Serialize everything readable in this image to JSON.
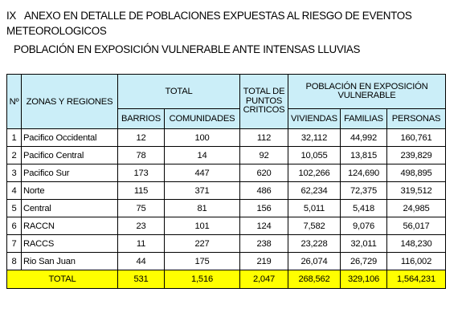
{
  "heading": {
    "number": "IX",
    "title": "ANEXO EN DETALLE DE POBLACIONES EXPUESTAS AL RIESGO DE EVENTOS METEOROLOGICOS",
    "subtitle": "POBLACIÓN EN EXPOSICIÓN VULNERABLE ANTE INTENSAS LLUVIAS"
  },
  "table": {
    "headers": {
      "num": "Nº",
      "zone": "ZONAS Y REGIONES",
      "total_group": "TOTAL",
      "barrios": "BARRIOS",
      "comunidades": "COMUNIDADES",
      "puntos_criticos": "TOTAL DE PUNTOS CRITICOS",
      "poblacion_group": "POBLACIÓN EN EXPOSICIÓN VULNERABLE",
      "viviendas": "VIVIENDAS",
      "familias": "FAMILIAS",
      "personas": "PERSONAS"
    },
    "rows": [
      {
        "num": "1",
        "zone": "Pacifico Occidental",
        "barrios": "12",
        "comunidades": "100",
        "puntos": "112",
        "viviendas": "32,112",
        "familias": "44,992",
        "personas": "160,761"
      },
      {
        "num": "2",
        "zone": "Pacifico Central",
        "barrios": "78",
        "comunidades": "14",
        "puntos": "92",
        "viviendas": "10,055",
        "familias": "13,815",
        "personas": "239,829"
      },
      {
        "num": "3",
        "zone": "Pacifico Sur",
        "barrios": "173",
        "comunidades": "447",
        "puntos": "620",
        "viviendas": "102,266",
        "familias": "124,690",
        "personas": "498,895"
      },
      {
        "num": "4",
        "zone": "Norte",
        "barrios": "115",
        "comunidades": "371",
        "puntos": "486",
        "viviendas": "62,234",
        "familias": "72,375",
        "personas": "319,512"
      },
      {
        "num": "5",
        "zone": "Central",
        "barrios": "75",
        "comunidades": "81",
        "puntos": "156",
        "viviendas": "5,011",
        "familias": "5,418",
        "personas": "24,985"
      },
      {
        "num": "6",
        "zone": "RACCN",
        "barrios": "23",
        "comunidades": "101",
        "puntos": "124",
        "viviendas": "7,582",
        "familias": "9,076",
        "personas": "56,017"
      },
      {
        "num": "7",
        "zone": "RACCS",
        "barrios": "11",
        "comunidades": "227",
        "puntos": "238",
        "viviendas": "23,228",
        "familias": "32,011",
        "personas": "148,230"
      },
      {
        "num": "8",
        "zone": "Rio San Juan",
        "barrios": "44",
        "comunidades": "175",
        "puntos": "219",
        "viviendas": "26,074",
        "familias": "26,729",
        "personas": "116,002"
      }
    ],
    "total": {
      "label": "TOTAL",
      "barrios": "531",
      "comunidades": "1,516",
      "puntos": "2,047",
      "viviendas": "268,562",
      "familias": "329,106",
      "personas": "1,564,231"
    }
  },
  "colors": {
    "header_bg": "#cbeef8",
    "total_bg": "#ffff00"
  }
}
